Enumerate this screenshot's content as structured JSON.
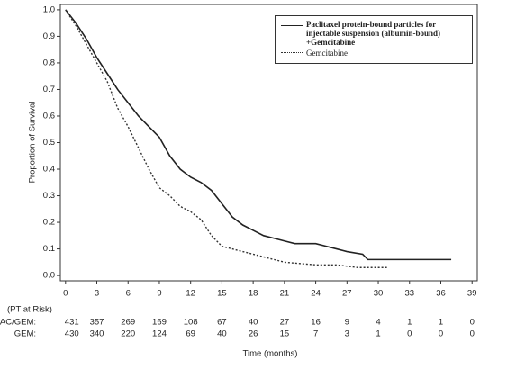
{
  "chart_data": {
    "type": "line",
    "y_label": "Proportion of Survival",
    "x_label": "Time (months)",
    "xlim": [
      -0.5,
      39.5
    ],
    "ylim": [
      -0.02,
      1.02
    ],
    "xticks": [
      0,
      3,
      6,
      9,
      12,
      15,
      18,
      21,
      24,
      27,
      30,
      33,
      36,
      39
    ],
    "yticks": [
      {
        "value": 0,
        "label": "0.0"
      },
      0.1,
      0.2,
      0.3,
      0.4,
      0.5,
      0.6,
      0.7,
      0.8,
      0.9,
      {
        "value": 1,
        "label": "1.0"
      }
    ],
    "series": [
      {
        "name": "Paclitaxel protein-bound particles for injectable suspension (albumin-bound) +Gemcitabine",
        "color": "#222222",
        "linestyle": "solid",
        "x": [
          0,
          1,
          2,
          3,
          4,
          5,
          6,
          7,
          8,
          9,
          10,
          11,
          12,
          13,
          14,
          15,
          16,
          17,
          18,
          19,
          20,
          21,
          22,
          24,
          25,
          26,
          27,
          28.5,
          29,
          37
        ],
        "values": [
          1.0,
          0.95,
          0.89,
          0.82,
          0.76,
          0.7,
          0.65,
          0.6,
          0.56,
          0.52,
          0.45,
          0.4,
          0.37,
          0.35,
          0.32,
          0.27,
          0.22,
          0.19,
          0.17,
          0.15,
          0.14,
          0.13,
          0.12,
          0.12,
          0.11,
          0.1,
          0.09,
          0.08,
          0.06,
          0.06
        ]
      },
      {
        "name": "Gemcitabine",
        "color": "#333333",
        "linestyle": "dotted",
        "x": [
          0,
          1,
          2,
          3,
          4,
          5,
          6,
          7,
          8,
          9,
          10,
          11,
          12,
          13,
          14,
          15,
          16,
          17,
          18,
          19,
          20,
          21,
          24,
          26,
          28,
          31
        ],
        "values": [
          1.0,
          0.94,
          0.87,
          0.8,
          0.73,
          0.63,
          0.56,
          0.48,
          0.4,
          0.33,
          0.3,
          0.26,
          0.24,
          0.21,
          0.15,
          0.11,
          0.1,
          0.09,
          0.08,
          0.07,
          0.06,
          0.05,
          0.04,
          0.04,
          0.03,
          0.03
        ]
      }
    ],
    "at_risk": {
      "title": "(PT at Risk)",
      "rows": [
        {
          "label": "PAC/GEM:",
          "values": [
            431,
            357,
            269,
            169,
            108,
            67,
            40,
            27,
            16,
            9,
            4,
            1,
            1,
            0
          ]
        },
        {
          "label": "GEM:",
          "values": [
            430,
            340,
            220,
            124,
            69,
            40,
            26,
            15,
            7,
            3,
            1,
            0,
            0,
            0
          ]
        }
      ]
    }
  }
}
